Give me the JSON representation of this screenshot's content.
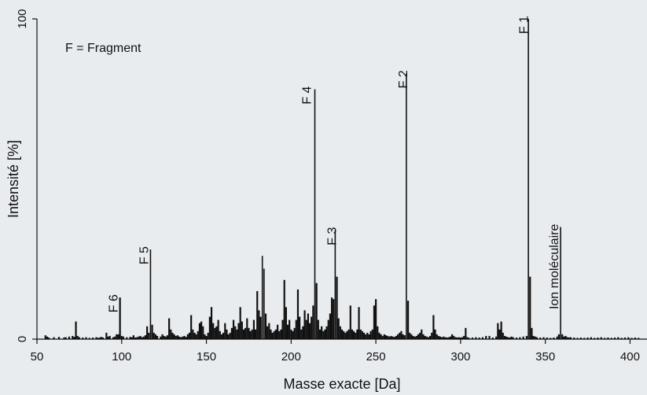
{
  "chart_data": {
    "type": "bar",
    "title": "",
    "xlabel": "Masse exacte [Da]",
    "ylabel": "Intensité [%]",
    "xlim": [
      50,
      410
    ],
    "ylim": [
      0,
      100
    ],
    "xticks": [
      50,
      100,
      150,
      200,
      250,
      300,
      350,
      400
    ],
    "yticks": [
      0,
      100
    ],
    "grid": false,
    "colors": {
      "bar": "#111111",
      "background": "#e9ecef",
      "axis": "#111111"
    },
    "annotations": [
      {
        "text": "F = Fragment",
        "kind": "legend-note",
        "placement": "top-left"
      },
      {
        "text": "F 1",
        "x": 341,
        "y": 100
      },
      {
        "text": "F 2",
        "x": 270,
        "y": 83
      },
      {
        "text": "F 4",
        "x": 213,
        "y": 78
      },
      {
        "text": "F 3",
        "x": 228,
        "y": 34
      },
      {
        "text": "F 5",
        "x": 117,
        "y": 28
      },
      {
        "text": "F 6",
        "x": 99,
        "y": 13
      },
      {
        "text": "Ion moléculaire",
        "x": 359,
        "y": 35
      }
    ],
    "x": [
      55,
      56,
      57,
      60,
      63,
      66,
      67,
      69,
      71,
      72,
      73,
      74,
      75,
      77,
      79,
      81,
      83,
      85,
      86,
      87,
      88,
      89,
      91,
      92,
      93,
      95,
      96,
      97,
      98,
      99,
      100,
      101,
      103,
      105,
      106,
      107,
      108,
      109,
      110,
      111,
      112,
      113,
      114,
      115,
      116,
      117,
      118,
      119,
      120,
      121,
      123,
      124,
      125,
      126,
      127,
      128,
      129,
      130,
      131,
      132,
      133,
      134,
      135,
      136,
      137,
      138,
      139,
      140,
      141,
      142,
      143,
      144,
      145,
      146,
      147,
      148,
      149,
      150,
      151,
      152,
      153,
      154,
      155,
      156,
      157,
      158,
      159,
      160,
      161,
      162,
      163,
      164,
      165,
      166,
      167,
      168,
      169,
      170,
      171,
      172,
      173,
      174,
      175,
      176,
      177,
      178,
      179,
      180,
      181,
      182,
      183,
      184,
      185,
      186,
      187,
      188,
      189,
      190,
      191,
      192,
      193,
      194,
      195,
      196,
      197,
      198,
      199,
      200,
      201,
      202,
      203,
      204,
      205,
      206,
      207,
      208,
      209,
      210,
      211,
      212,
      213,
      214,
      215,
      216,
      217,
      218,
      219,
      220,
      221,
      222,
      223,
      224,
      225,
      226,
      227,
      228,
      229,
      230,
      231,
      232,
      233,
      234,
      235,
      236,
      237,
      238,
      239,
      240,
      241,
      242,
      243,
      244,
      245,
      246,
      247,
      248,
      249,
      250,
      251,
      252,
      253,
      254,
      255,
      256,
      257,
      258,
      259,
      260,
      261,
      262,
      263,
      264,
      265,
      266,
      267,
      268,
      269,
      270,
      271,
      272,
      273,
      274,
      275,
      276,
      277,
      278,
      279,
      280,
      281,
      282,
      283,
      284,
      285,
      286,
      287,
      288,
      289,
      290,
      291,
      292,
      293,
      294,
      295,
      296,
      297,
      298,
      299,
      300,
      301,
      302,
      303,
      304,
      305,
      307,
      309,
      311,
      313,
      315,
      317,
      319,
      321,
      322,
      323,
      324,
      325,
      326,
      327,
      328,
      329,
      330,
      331,
      333,
      335,
      337,
      339,
      340,
      341,
      342,
      343,
      344,
      345,
      347,
      349,
      351,
      353,
      355,
      357,
      358,
      359,
      360,
      361,
      362,
      363,
      364,
      365,
      367,
      369,
      371,
      373,
      375,
      377,
      379,
      381,
      383,
      385,
      387,
      389,
      391,
      393,
      395,
      397,
      399,
      401,
      403,
      405
    ],
    "values": [
      1.2,
      0.8,
      0.5,
      0.6,
      0.7,
      0.5,
      0.6,
      0.8,
      1.0,
      0.7,
      5.5,
      1.0,
      0.6,
      0.5,
      0.6,
      0.4,
      0.5,
      0.6,
      0.4,
      0.5,
      0.7,
      0.5,
      2.0,
      0.8,
      1.0,
      0.6,
      0.8,
      1.5,
      1.5,
      13.0,
      1.0,
      0.8,
      0.6,
      0.7,
      0.6,
      1.2,
      0.5,
      0.6,
      0.8,
      1.0,
      0.6,
      0.8,
      1.2,
      4.0,
      2.0,
      28.0,
      4.5,
      2.0,
      1.5,
      1.0,
      0.8,
      1.5,
      1.0,
      0.8,
      1.2,
      6.5,
      3.0,
      2.0,
      1.5,
      1.0,
      1.2,
      0.8,
      0.6,
      0.8,
      1.0,
      0.7,
      1.5,
      2.0,
      7.5,
      3.0,
      2.0,
      1.5,
      2.5,
      5.0,
      5.5,
      4.0,
      1.5,
      1.0,
      2.0,
      7.0,
      10.0,
      5.0,
      3.5,
      4.0,
      6.0,
      2.5,
      1.5,
      2.0,
      5.0,
      3.0,
      1.5,
      2.0,
      3.5,
      6.0,
      4.0,
      3.0,
      5.0,
      10.0,
      5.5,
      3.0,
      3.5,
      6.5,
      3.5,
      2.5,
      3.0,
      6.0,
      3.0,
      15.0,
      9.0,
      7.0,
      26.0,
      22.0,
      8.0,
      4.0,
      5.0,
      3.0,
      2.0,
      2.5,
      3.0,
      4.5,
      2.5,
      3.0,
      6.0,
      18.5,
      10.0,
      4.5,
      6.0,
      3.0,
      2.5,
      3.5,
      6.0,
      15.5,
      7.0,
      3.0,
      4.0,
      9.0,
      6.0,
      8.0,
      5.0,
      7.0,
      10.5,
      78.0,
      17.5,
      6.0,
      3.0,
      4.0,
      2.5,
      3.0,
      4.0,
      6.0,
      8.0,
      13.0,
      12.5,
      34.0,
      19.5,
      6.5,
      4.0,
      3.0,
      2.5,
      2.0,
      2.5,
      3.0,
      10.5,
      3.0,
      2.5,
      2.0,
      3.0,
      10.0,
      3.0,
      2.5,
      2.0,
      1.5,
      2.0,
      1.5,
      2.5,
      3.0,
      10.5,
      12.5,
      4.0,
      2.0,
      1.5,
      1.0,
      1.5,
      1.2,
      1.0,
      0.8,
      1.0,
      0.8,
      0.7,
      1.0,
      1.5,
      2.0,
      2.5,
      1.5,
      1.2,
      83.0,
      12.0,
      2.0,
      1.5,
      1.0,
      0.8,
      1.0,
      1.5,
      2.0,
      3.0,
      1.5,
      1.0,
      0.8,
      0.6,
      1.0,
      2.0,
      7.5,
      3.0,
      1.5,
      1.0,
      0.8,
      0.6,
      0.8,
      0.6,
      0.5,
      0.6,
      0.8,
      1.5,
      1.0,
      0.6,
      0.5,
      0.6,
      0.5,
      0.6,
      1.0,
      3.5,
      0.6,
      0.4,
      0.5,
      0.6,
      0.5,
      0.6,
      1.0,
      1.0,
      0.5,
      0.8,
      5.0,
      3.0,
      5.5,
      2.0,
      1.0,
      0.8,
      0.6,
      0.5,
      0.8,
      0.6,
      0.5,
      0.6,
      0.8,
      1.0,
      100.0,
      19.5,
      3.5,
      1.0,
      0.8,
      0.6,
      0.5,
      0.6,
      0.5,
      0.4,
      0.5,
      0.8,
      1.5,
      35.0,
      1.5,
      0.8,
      1.0,
      0.6,
      0.5,
      0.6,
      0.5,
      0.4,
      0.5,
      0.4,
      0.5,
      0.6,
      0.4,
      0.5,
      0.6,
      0.4,
      0.5,
      0.4,
      0.5,
      0.6,
      0.4,
      0.5,
      0.6,
      0.4,
      0.5,
      0.4
    ]
  }
}
